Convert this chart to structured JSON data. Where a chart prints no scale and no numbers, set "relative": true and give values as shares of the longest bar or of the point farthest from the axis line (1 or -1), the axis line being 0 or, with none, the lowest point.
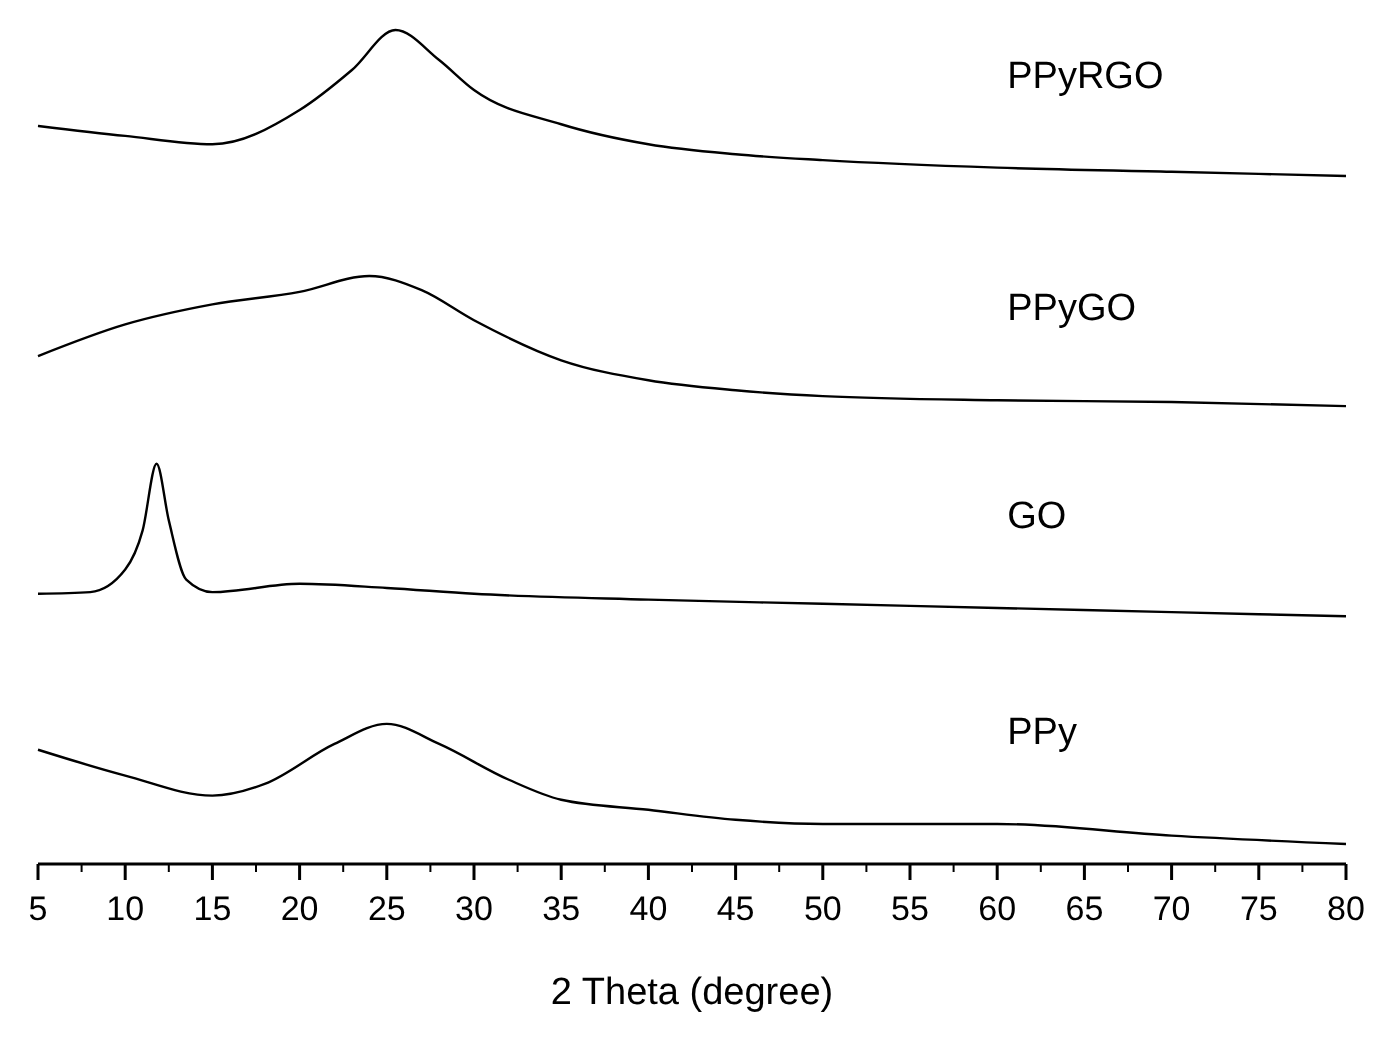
{
  "chart_data": {
    "type": "line",
    "relative": true,
    "xlabel": "2 Theta (degree)",
    "xlim": [
      5,
      80
    ],
    "xticks": [
      5,
      10,
      15,
      20,
      25,
      30,
      35,
      40,
      45,
      50,
      55,
      60,
      65,
      70,
      75,
      80
    ],
    "grid": false,
    "marker": "none",
    "line_style": "solid",
    "tick_labels": "x",
    "series": [
      {
        "name": "PPyRGO",
        "color": "#000000",
        "x": [
          5,
          10,
          15,
          20,
          23,
          25.5,
          28,
          30,
          35,
          40,
          45,
          50,
          60,
          70,
          80
        ],
        "values": [
          0.885,
          0.873,
          0.863,
          0.904,
          0.952,
          1,
          0.964,
          0.928,
          0.887,
          0.863,
          0.851,
          0.844,
          0.835,
          0.83,
          0.825
        ]
      },
      {
        "name": "PPyGO",
        "color": "#000000",
        "x": [
          5,
          10,
          15,
          20,
          24,
          27,
          30,
          35,
          40,
          45,
          50,
          60,
          70,
          80
        ],
        "values": [
          0.609,
          0.647,
          0.671,
          0.686,
          0.705,
          0.688,
          0.652,
          0.604,
          0.58,
          0.568,
          0.561,
          0.556,
          0.554,
          0.549
        ]
      },
      {
        "name": "GO",
        "color": "#000000",
        "x": [
          5,
          8,
          10,
          11,
          11.8,
          12.5,
          13.5,
          15,
          20,
          25,
          30,
          40,
          50,
          60,
          70,
          80
        ],
        "values": [
          0.324,
          0.326,
          0.353,
          0.4,
          0.48,
          0.412,
          0.341,
          0.326,
          0.336,
          0.331,
          0.324,
          0.317,
          0.312,
          0.307,
          0.302,
          0.297
        ]
      },
      {
        "name": "PPy",
        "color": "#000000",
        "x": [
          5,
          10,
          15,
          18,
          22,
          25,
          28,
          32,
          35,
          40,
          45,
          50,
          60,
          70,
          80
        ],
        "values": [
          0.137,
          0.106,
          0.082,
          0.096,
          0.144,
          0.168,
          0.144,
          0.101,
          0.077,
          0.065,
          0.053,
          0.048,
          0.048,
          0.034,
          0.024
        ]
      }
    ]
  }
}
